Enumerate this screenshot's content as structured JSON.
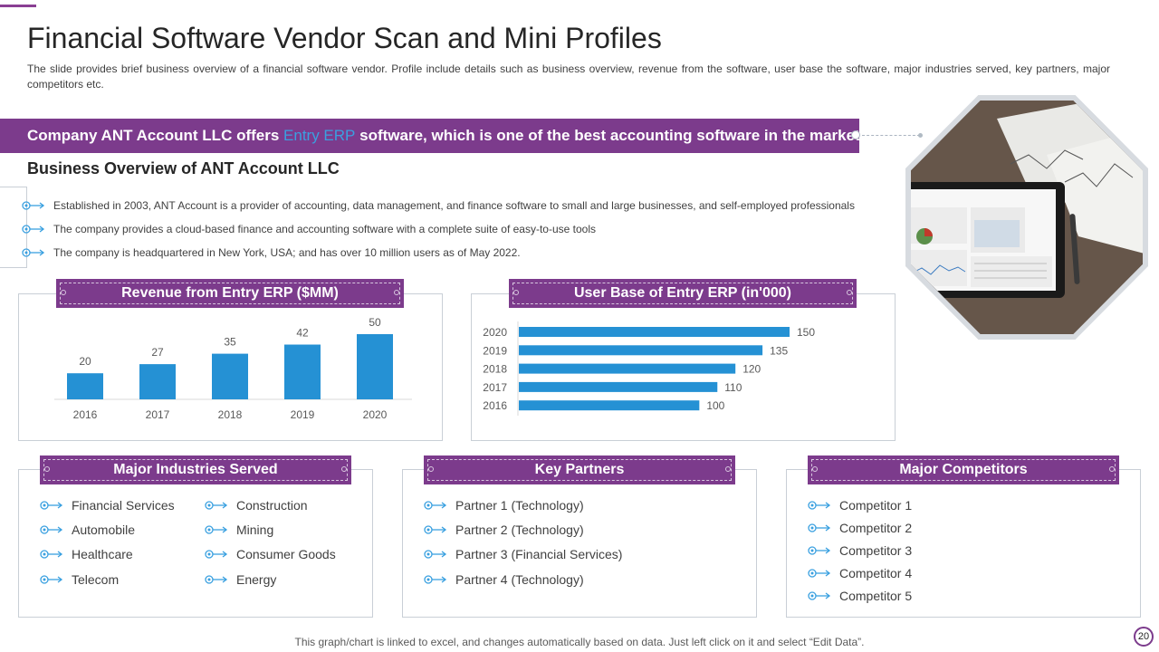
{
  "title": "Financial Software Vendor Scan and Mini Profiles",
  "subtitle": "The slide provides brief business overview  of a financial software vendor.  Profile include details such as business overview,  revenue from the software, user base the software, major industries served, key partners, major competitors etc.",
  "banner": {
    "prefix": "Company ANT Account LLC offers ",
    "highlight": "Entry ERP",
    "suffix": " software,  which is one of the best accounting software in the market"
  },
  "overview": {
    "title": "Business Overview of ANT Account LLC",
    "bullets": [
      "Established in 2003, ANT Account is a provider of accounting, data management, and finance software to small and large businesses, and self-employed professionals",
      "The company provides a cloud-based finance and accounting software with a complete suite of easy-to-use tools",
      "The company is headquartered in New York, USA; and has over 10 million users as of May 2022."
    ]
  },
  "chart_data": [
    {
      "type": "bar",
      "title": "Revenue from Entry ERP ($MM)",
      "categories": [
        "2016",
        "2017",
        "2018",
        "2019",
        "2020"
      ],
      "values": [
        20,
        27,
        35,
        42,
        50
      ],
      "ylim": [
        0,
        50
      ],
      "grid": false
    },
    {
      "type": "bar",
      "orientation": "horizontal",
      "title": "User Base of Entry ERP (in'000)",
      "categories": [
        "2020",
        "2019",
        "2018",
        "2017",
        "2016"
      ],
      "values": [
        150,
        135,
        120,
        110,
        100
      ],
      "xlim": [
        0,
        150
      ],
      "grid": false
    }
  ],
  "industries": {
    "title": "Major Industries Served",
    "col1": [
      "Financial Services",
      "Automobile",
      "Healthcare",
      "Telecom"
    ],
    "col2": [
      "Construction",
      "Mining",
      "Consumer Goods",
      "Energy"
    ]
  },
  "partners": {
    "title": "Key Partners",
    "items": [
      "Partner 1 (Technology)",
      "Partner 2 (Technology)",
      "Partner 3 (Financial Services)",
      "Partner 4 (Technology)"
    ]
  },
  "competitors": {
    "title": "Major Competitors",
    "items": [
      "Competitor  1",
      "Competitor  2",
      "Competitor  3",
      "Competitor 4",
      "Competitor  5"
    ]
  },
  "footer": "This graph/chart is linked to excel,  and changes automatically based on data. Just left click on it and select “Edit Data”.",
  "page_number": "20",
  "colors": {
    "accent": "#7c3b8c",
    "bar": "#2591d4",
    "link": "#3aa0e0"
  },
  "image_icon": "tablet-dashboard-photo"
}
